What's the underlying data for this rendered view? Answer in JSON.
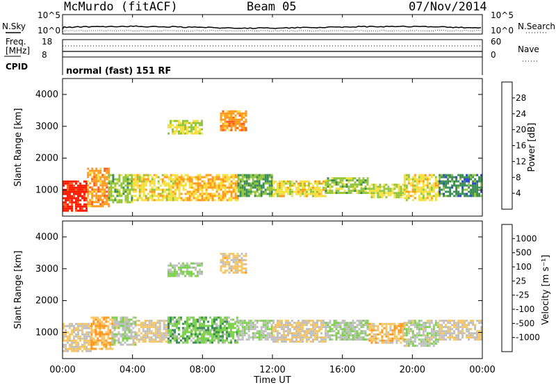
{
  "header": {
    "station": "McMurdo (fitACF)",
    "beam": "Beam 05",
    "date": "07/Nov/2014"
  },
  "sky_panel": {
    "left_label": "N.Sky",
    "right_label": "N.Search",
    "left_ticks": [
      "10^5",
      "10^0"
    ],
    "right_ticks": [
      "10^5",
      "10^0"
    ]
  },
  "freq_panel": {
    "left_label_1": "Freq.",
    "left_label_2": "[MHz]",
    "right_label": "Nave",
    "left_ticks": [
      "18",
      "8"
    ],
    "right_ticks": [
      "60",
      "0"
    ]
  },
  "cpid": {
    "label": "CPID",
    "value": "normal (fast) 151 RF"
  },
  "x_axis": {
    "label": "Time UT",
    "ticks": [
      "00:00",
      "04:00",
      "08:00",
      "12:00",
      "16:00",
      "20:00",
      "00:00"
    ]
  },
  "chart_data": [
    {
      "type": "heatmap",
      "title": "",
      "xlabel": "Time UT",
      "ylabel": "Slant Range [km]",
      "xlim": [
        0,
        24
      ],
      "ylim": [
        180,
        4500
      ],
      "y_ticks": [
        "1000",
        "2000",
        "3000",
        "4000"
      ],
      "colorbar": {
        "label": "Power [dB]",
        "ticks": [
          "4",
          "8",
          "12",
          "16",
          "20",
          "24",
          "28"
        ],
        "range": [
          0,
          32
        ],
        "colors": [
          "#1a1aff",
          "#2a4ad0",
          "#3e8f55",
          "#93c63d",
          "#f6e040",
          "#ff9a1e",
          "#ff5b1e",
          "#ff1a00"
        ]
      },
      "regions": [
        {
          "t0": 0.0,
          "t1": 1.4,
          "r0": 350,
          "r1": 1300,
          "v": 30
        },
        {
          "t0": 1.4,
          "t1": 2.6,
          "r0": 500,
          "r1": 1700,
          "v": 22
        },
        {
          "t0": 2.6,
          "t1": 4.0,
          "r0": 600,
          "r1": 1500,
          "v": 14
        },
        {
          "t0": 4.0,
          "t1": 6.5,
          "r0": 700,
          "r1": 1500,
          "v": 18
        },
        {
          "t0": 6.5,
          "t1": 10.0,
          "r0": 700,
          "r1": 1500,
          "v": 20
        },
        {
          "t0": 6.0,
          "t1": 8.0,
          "r0": 2800,
          "r1": 3200,
          "v": 16
        },
        {
          "t0": 9.0,
          "t1": 10.5,
          "r0": 2900,
          "r1": 3500,
          "v": 22
        },
        {
          "t0": 10.0,
          "t1": 12.0,
          "r0": 800,
          "r1": 1500,
          "v": 12
        },
        {
          "t0": 12.0,
          "t1": 15.0,
          "r0": 800,
          "r1": 1300,
          "v": 18
        },
        {
          "t0": 15.0,
          "t1": 17.5,
          "r0": 900,
          "r1": 1400,
          "v": 14
        },
        {
          "t0": 17.5,
          "t1": 19.5,
          "r0": 800,
          "r1": 1200,
          "v": 16
        },
        {
          "t0": 19.5,
          "t1": 21.5,
          "r0": 700,
          "r1": 1500,
          "v": 18
        },
        {
          "t0": 21.5,
          "t1": 24.0,
          "r0": 800,
          "r1": 1500,
          "v": 10
        }
      ]
    },
    {
      "type": "heatmap",
      "title": "",
      "xlabel": "Time UT",
      "ylabel": "Slant Range [km]",
      "xlim": [
        0,
        24
      ],
      "ylim": [
        180,
        4500
      ],
      "y_ticks": [
        "1000",
        "2000",
        "3000",
        "4000"
      ],
      "colorbar": {
        "label": "Velocity [m s⁻¹]",
        "ticks": [
          "1000",
          "500",
          "100",
          "25",
          "-25",
          "-100",
          "-500",
          "-1000"
        ],
        "range": [
          -1200,
          1200
        ],
        "colors": [
          "#ff1a1a",
          "#ff5a1a",
          "#ff981e",
          "#f7c664",
          "#c0c0c0",
          "#7fd24f",
          "#3f8d5a",
          "#2f5fb0",
          "#2233d0"
        ]
      },
      "regions": [
        {
          "t0": 0.0,
          "t1": 1.6,
          "r0": 400,
          "r1": 1300,
          "v": -150
        },
        {
          "t0": 1.6,
          "t1": 2.8,
          "r0": 500,
          "r1": 1500,
          "v": -400
        },
        {
          "t0": 2.8,
          "t1": 4.2,
          "r0": 600,
          "r1": 1500,
          "v": 60
        },
        {
          "t0": 4.2,
          "t1": 6.0,
          "r0": 700,
          "r1": 1400,
          "v": -150
        },
        {
          "t0": 6.0,
          "t1": 10.0,
          "r0": 700,
          "r1": 1500,
          "v": 300
        },
        {
          "t0": 6.0,
          "t1": 8.0,
          "r0": 2800,
          "r1": 3200,
          "v": 150
        },
        {
          "t0": 9.0,
          "t1": 10.5,
          "r0": 2900,
          "r1": 3500,
          "v": -200
        },
        {
          "t0": 10.0,
          "t1": 12.0,
          "r0": 800,
          "r1": 1400,
          "v": 100
        },
        {
          "t0": 12.0,
          "t1": 15.0,
          "r0": 700,
          "r1": 1400,
          "v": -150
        },
        {
          "t0": 15.0,
          "t1": 17.5,
          "r0": 800,
          "r1": 1400,
          "v": 100
        },
        {
          "t0": 17.5,
          "t1": 19.5,
          "r0": 700,
          "r1": 1300,
          "v": -300
        },
        {
          "t0": 19.5,
          "t1": 21.5,
          "r0": 600,
          "r1": 1400,
          "v": 60
        },
        {
          "t0": 21.5,
          "t1": 24.0,
          "r0": 800,
          "r1": 1400,
          "v": -100
        }
      ]
    }
  ]
}
